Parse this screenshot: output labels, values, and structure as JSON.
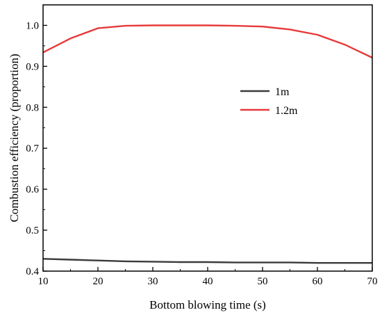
{
  "chart_data": {
    "type": "line",
    "xlabel": "Bottom blowing time (s)",
    "ylabel": "Combustion efficiency (proportion)",
    "xlim": [
      10,
      70
    ],
    "ylim": [
      0.4,
      1.05
    ],
    "xticks": [
      10,
      20,
      30,
      40,
      50,
      60,
      70
    ],
    "yticks": [
      0.4,
      0.5,
      0.6,
      0.7,
      0.8,
      0.9,
      1.0
    ],
    "xtick_labels": [
      "10",
      "20",
      "30",
      "40",
      "50",
      "60",
      "70"
    ],
    "ytick_labels": [
      "0.4",
      "0.5",
      "0.6",
      "0.7",
      "0.8",
      "0.9",
      "1.0"
    ],
    "x": [
      10,
      15,
      20,
      25,
      30,
      35,
      40,
      45,
      50,
      55,
      60,
      65,
      70
    ],
    "series": [
      {
        "name": "1m",
        "color": "#3a3a3a",
        "values": [
          0.43,
          0.428,
          0.426,
          0.424,
          0.423,
          0.422,
          0.422,
          0.421,
          0.421,
          0.421,
          0.42,
          0.42,
          0.42
        ]
      },
      {
        "name": "1.2m",
        "color": "#e8393a",
        "values": [
          0.934,
          0.968,
          0.993,
          0.999,
          1.0,
          1.0,
          1.0,
          0.999,
          0.997,
          0.99,
          0.977,
          0.953,
          0.921
        ]
      }
    ],
    "grid": false,
    "legend_position": "center-right"
  }
}
